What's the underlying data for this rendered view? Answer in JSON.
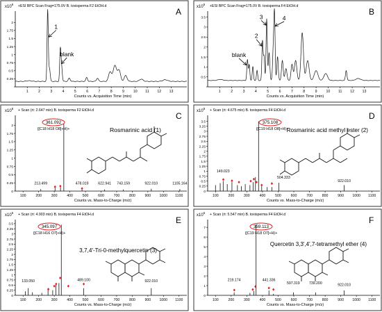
{
  "chart_data": [
    {
      "type": "line",
      "panel_letter": "A",
      "header": "+ESI BPC Scan Frag=175.0V B. toxisperma F2 EtOH.d",
      "y_exponent": "x10",
      "y_exponent_power": "6",
      "xlabel": "Counts vs. Acquisition Time (min)",
      "xlim": [
        0,
        14.3
      ],
      "ylim": [
        0,
        2.35
      ],
      "xticks": [
        1,
        2,
        3,
        4,
        5,
        6,
        7,
        8,
        9,
        10,
        11,
        12,
        13
      ],
      "yticks": [
        0,
        0.25,
        0.5,
        0.75,
        1,
        1.25,
        1.5,
        1.75,
        2
      ],
      "ytick_labels": [
        "",
        "0.25",
        "0.5",
        "0.75",
        "1",
        "1.25",
        "1.5",
        "1.75",
        "2"
      ],
      "baseline": 0.17,
      "peaks": [
        [
          1.15,
          0.02,
          0.2
        ],
        [
          2.7,
          2.22,
          0.05
        ],
        [
          2.85,
          0.4,
          0.06
        ],
        [
          3.75,
          0.92,
          0.05
        ],
        [
          3.85,
          0.5,
          0.06
        ],
        [
          4.5,
          0.1,
          0.08
        ],
        [
          5.95,
          0.12,
          0.07
        ],
        [
          6.85,
          0.1,
          0.08
        ],
        [
          7.9,
          0.3,
          0.12
        ],
        [
          8.3,
          0.5,
          0.14
        ],
        [
          8.65,
          0.35,
          0.12
        ],
        [
          9.2,
          0.18,
          0.12
        ],
        [
          10.5,
          0.07,
          0.15
        ],
        [
          12.5,
          0.05,
          0.2
        ]
      ],
      "annotations": [
        {
          "text": "1",
          "x": 3.4,
          "y": 1.8,
          "ax": 2.8,
          "ay": 1.55
        },
        {
          "text": "blank",
          "x": 4.3,
          "y": 0.95,
          "ax": 3.85,
          "ay": 0.72
        }
      ]
    },
    {
      "type": "line",
      "panel_letter": "B",
      "header": "+ESI BPC Scan Frag=175.0V B. toxisperma F4 EtOH.d",
      "y_exponent": "x10",
      "y_exponent_power": "6",
      "xlabel": "Counts vs. Acquisition Time (min)",
      "xlim": [
        0,
        14.3
      ],
      "ylim": [
        0,
        3.8
      ],
      "xticks": [
        1,
        2,
        3,
        4,
        5,
        6,
        7,
        8,
        9,
        10,
        11,
        12,
        13
      ],
      "yticks": [
        0,
        0.5,
        1,
        1.5,
        2,
        2.5,
        3,
        3.5
      ],
      "ytick_labels": [
        "",
        "0.5",
        "1",
        "1.5",
        "2",
        "2.5",
        "3",
        "3.5"
      ],
      "baseline": 0.32,
      "peaks": [
        [
          1.05,
          0.05,
          0.2
        ],
        [
          3.3,
          1.05,
          0.05
        ],
        [
          3.45,
          0.8,
          0.05
        ],
        [
          3.75,
          0.7,
          0.05
        ],
        [
          4.1,
          0.5,
          0.05
        ],
        [
          4.55,
          2.0,
          0.05
        ],
        [
          4.68,
          1.2,
          0.05
        ],
        [
          4.9,
          3.1,
          0.05
        ],
        [
          5.1,
          1.4,
          0.06
        ],
        [
          5.45,
          1.6,
          0.06
        ],
        [
          5.55,
          3.15,
          0.05
        ],
        [
          5.8,
          1.2,
          0.06
        ],
        [
          6.2,
          1.0,
          0.07
        ],
        [
          6.5,
          0.6,
          0.08
        ],
        [
          7.0,
          0.8,
          0.08
        ],
        [
          7.3,
          1.0,
          0.1
        ],
        [
          7.85,
          2.4,
          0.1
        ],
        [
          8.3,
          1.0,
          0.12
        ],
        [
          9.0,
          0.5,
          0.15
        ],
        [
          9.8,
          0.35,
          0.15
        ],
        [
          11.5,
          0.5,
          0.06
        ],
        [
          12.5,
          0.1,
          0.2
        ]
      ],
      "annotations": [
        {
          "text": "blank",
          "x": 2.6,
          "y": 1.5,
          "ax": 3.2,
          "ay": 1.1
        },
        {
          "text": "2",
          "x": 4.05,
          "y": 2.45,
          "ax": 4.5,
          "ay": 2.05
        },
        {
          "text": "3",
          "x": 4.45,
          "y": 3.4,
          "ax": 4.85,
          "ay": 3.1
        },
        {
          "text": "4",
          "x": 6.35,
          "y": 3.35,
          "ax": 5.6,
          "ay": 3.05
        }
      ]
    },
    {
      "type": "bar",
      "panel_letter": "C",
      "header": "+ Scan (rt: 2.647 min) B. toxisperma F2 EtOH.d",
      "y_exponent": "x10",
      "y_exponent_power": "6",
      "xlabel": "Counts vs. Mass-to-Charge (m/z)",
      "xlim": [
        50,
        1150
      ],
      "ylim": [
        0,
        2.3
      ],
      "xticks": [
        100,
        200,
        300,
        400,
        500,
        600,
        700,
        800,
        900,
        1000,
        1100
      ],
      "yticks": [
        0,
        0.25,
        0.5,
        0.75,
        1,
        1.25,
        1.5,
        1.75,
        2
      ],
      "ytick_labels": [
        "0",
        "0.25",
        "0.5",
        "0.75",
        "1",
        "1.25",
        "1.5",
        "1.75",
        "2"
      ],
      "precursor": "361.092",
      "formula": "([C18 H18 O8]+H)+",
      "compound": "Rosmarinic acid (1)",
      "peaks": [
        [
          361.092,
          2.05
        ],
        [
          213.499,
          0.06
        ],
        [
          305,
          0.1
        ],
        [
          340,
          0.12
        ],
        [
          478.019,
          0.05
        ],
        [
          622.941,
          0.05
        ],
        [
          743.159,
          0.05
        ],
        [
          922.01,
          0.07
        ],
        [
          1105.164,
          0.06
        ]
      ],
      "diamonds": [
        [
          305,
          0.13
        ],
        [
          339,
          0.15
        ],
        [
          478,
          0.08
        ]
      ],
      "peak_labels": [
        {
          "text": "213.499",
          "x": 213.5,
          "y": 0.2
        },
        {
          "text": "478.019",
          "x": 478,
          "y": 0.2
        },
        {
          "text": "622.941",
          "x": 623,
          "y": 0.2
        },
        {
          "text": "743.159",
          "x": 743,
          "y": 0.2
        },
        {
          "text": "922.010",
          "x": 922,
          "y": 0.2
        },
        {
          "text": "1105.164",
          "x": 1105,
          "y": 0.2
        }
      ]
    },
    {
      "type": "bar",
      "panel_letter": "D",
      "header": "+ Scan (rt: 4.675 min) B. toxisperma F4 EtOH.d",
      "y_exponent": "x10",
      "y_exponent_power": "5",
      "xlabel": "Counts vs. Mass-to-Charge (m/z)",
      "xlim": [
        50,
        1150
      ],
      "ylim": [
        0,
        3.8
      ],
      "xticks": [
        100,
        200,
        300,
        400,
        500,
        600,
        700,
        800,
        900,
        1000,
        1100
      ],
      "yticks": [
        0,
        0.25,
        0.5,
        0.75,
        1,
        1.25,
        1.5,
        1.75,
        2,
        2.25,
        2.5,
        2.75,
        3,
        3.25,
        3.5
      ],
      "ytick_labels": [
        "0",
        "0.25",
        "0.5",
        "0.75",
        "1",
        "1.25",
        "1.5",
        "1.75",
        "2",
        "2.25",
        "2.5",
        "2.75",
        "3",
        "3.25",
        "3.5"
      ],
      "precursor": "375.108",
      "formula": "([C19 H18 O8]+H)+",
      "compound": "Rosmarinic acid methyl ester (2)",
      "peaks": [
        [
          375.108,
          3.5
        ],
        [
          149.023,
          0.5
        ],
        [
          100,
          0.3
        ],
        [
          130,
          0.4
        ],
        [
          175,
          0.35
        ],
        [
          205,
          0.45
        ],
        [
          240,
          0.3
        ],
        [
          265,
          0.25
        ],
        [
          290,
          0.35
        ],
        [
          320,
          0.3
        ],
        [
          340,
          0.45
        ],
        [
          355,
          0.7
        ],
        [
          395,
          0.25
        ],
        [
          430,
          0.2
        ],
        [
          460,
          0.2
        ],
        [
          504.333,
          0.42
        ],
        [
          922.01,
          0.3
        ]
      ],
      "diamonds": [
        [
          150,
          0.58
        ],
        [
          205,
          0.52
        ],
        [
          250,
          0.45
        ],
        [
          325,
          0.5
        ],
        [
          345,
          0.6
        ],
        [
          362,
          0.45
        ],
        [
          395,
          0.3
        ],
        [
          460,
          0.38
        ]
      ],
      "peak_labels": [
        {
          "text": "149.023",
          "x": 149,
          "y": 0.95
        },
        {
          "text": "504.333",
          "x": 535,
          "y": 0.62
        },
        {
          "text": "922.010",
          "x": 922,
          "y": 0.45
        }
      ]
    },
    {
      "type": "bar",
      "panel_letter": "E",
      "header": "+ Scan (rt: 4.903 min) B. toxisperma F4 EtOH.d",
      "y_exponent": "x10",
      "y_exponent_power": "5",
      "xlabel": "Counts vs. Mass-to-Charge (m/z)",
      "xlim": [
        50,
        1150
      ],
      "ylim": [
        0,
        3.7
      ],
      "xticks": [
        100,
        200,
        300,
        400,
        500,
        600,
        700,
        800,
        900,
        1000,
        1100
      ],
      "yticks": [
        0,
        0.25,
        0.5,
        0.75,
        1,
        1.25,
        1.5,
        1.75,
        2,
        2.25,
        2.5,
        2.75,
        3,
        3.25,
        3.5
      ],
      "ytick_labels": [
        "0",
        "0.25",
        "0.5",
        "0.75",
        "1",
        "1.25",
        "1.5",
        "1.75",
        "2",
        "2.25",
        "2.5",
        "2.75",
        "3",
        "3.25",
        "3.5"
      ],
      "precursor": "345.097",
      "formula": "([C18 H16 O7]+H)+",
      "compound": "3,7,4'-Tri-0-methylquercetin (3)",
      "peaks": [
        [
          345.097,
          3.45
        ],
        [
          133.05,
          0.35
        ],
        [
          115,
          0.2
        ],
        [
          160,
          0.15
        ],
        [
          220,
          0.12
        ],
        [
          260,
          0.3
        ],
        [
          290,
          0.25
        ],
        [
          310,
          0.5
        ],
        [
          330,
          0.6
        ],
        [
          489.1,
          0.35
        ],
        [
          922.01,
          0.35
        ]
      ],
      "diamonds": [
        [
          262,
          0.3
        ],
        [
          300,
          0.45
        ],
        [
          312,
          0.55
        ],
        [
          338,
          0.85
        ],
        [
          390,
          0.45
        ],
        [
          489,
          0.55
        ]
      ],
      "peak_labels": [
        {
          "text": "133.050",
          "x": 133,
          "y": 0.65
        },
        {
          "text": "489.100",
          "x": 489,
          "y": 0.7
        },
        {
          "text": "922.010",
          "x": 922,
          "y": 0.65
        }
      ]
    },
    {
      "type": "bar",
      "panel_letter": "F",
      "header": "+ Scan (rt: 5.547 min) B. toxisperma F4 EtOH.d",
      "y_exponent": "x10",
      "y_exponent_power": "5",
      "xlabel": "Counts vs. Mass-to-Charge (m/z)",
      "xlim": [
        50,
        1150
      ],
      "ylim": [
        0,
        7.8
      ],
      "xticks": [
        100,
        200,
        300,
        400,
        500,
        600,
        700,
        800,
        900,
        1000,
        1100
      ],
      "yticks": [
        0,
        1,
        2,
        3,
        4,
        5,
        6,
        7
      ],
      "ytick_labels": [
        "0",
        "1",
        "2",
        "3",
        "4",
        "5",
        "6",
        "7"
      ],
      "precursor": "359.113",
      "formula": "([C19 H18 O7]+H)+",
      "compound": "Quercetin 3,3',4',7-tetramethyl ether (4)",
      "peaks": [
        [
          359.113,
          7.3
        ],
        [
          219.174,
          0.3
        ],
        [
          320,
          0.25
        ],
        [
          345,
          0.45
        ],
        [
          441.336,
          0.5
        ],
        [
          470,
          0.15
        ],
        [
          597.319,
          0.3
        ],
        [
          739.2,
          0.3
        ],
        [
          922.01,
          0.5
        ]
      ],
      "diamonds": [
        [
          220,
          0.55
        ],
        [
          338,
          0.6
        ],
        [
          355,
          0.9
        ],
        [
          441,
          0.75
        ],
        [
          470,
          0.6
        ]
      ],
      "peak_labels": [
        {
          "text": "219.174",
          "x": 219,
          "y": 1.45
        },
        {
          "text": "441.336",
          "x": 441,
          "y": 1.45
        },
        {
          "text": "597.319",
          "x": 597,
          "y": 1.15
        },
        {
          "text": "739.200",
          "x": 739,
          "y": 1.15
        },
        {
          "text": "922.010",
          "x": 922,
          "y": 0.95
        }
      ]
    }
  ]
}
